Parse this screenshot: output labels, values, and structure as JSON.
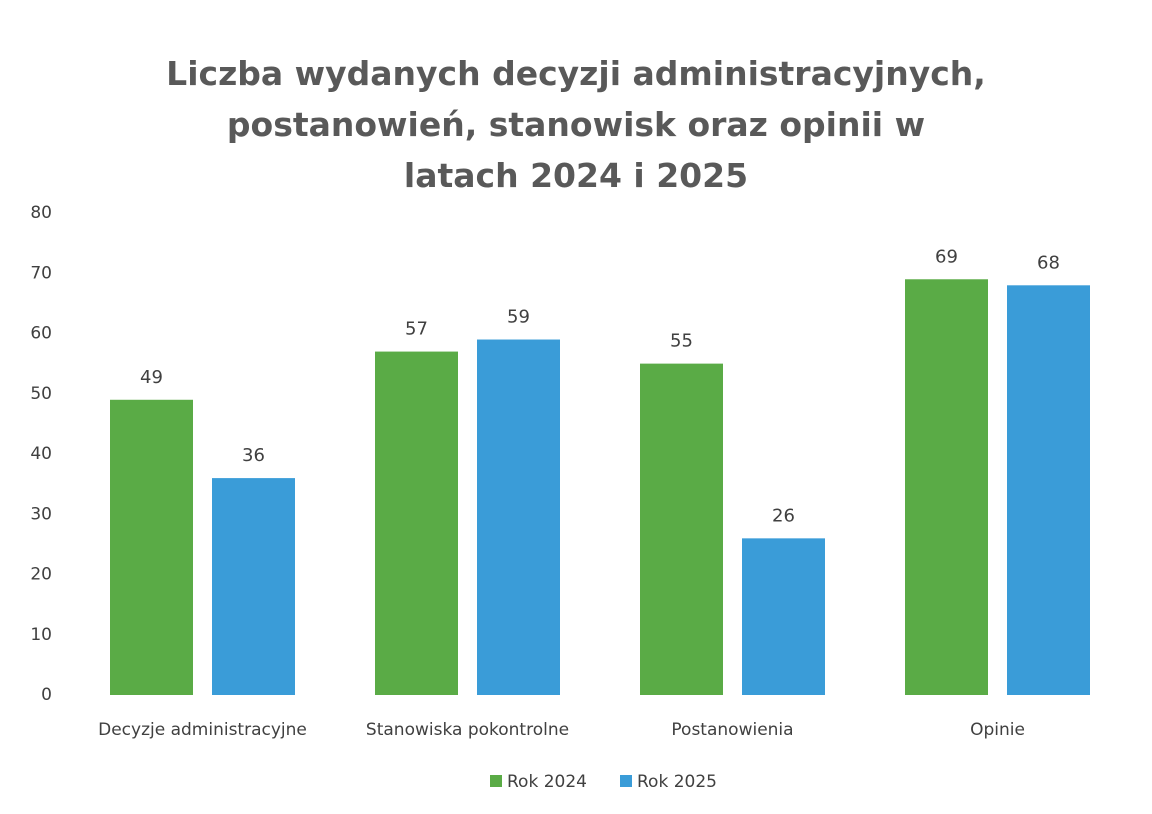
{
  "chart_data": {
    "type": "bar",
    "title": "Liczba wydanych decyzji administracyjnych, postanowień, stanowisk oraz opinii w latach 2024 i 2025",
    "categories": [
      "Decyzje administracyjne",
      "Stanowiska pokontrolne",
      "Postanowienia",
      "Opinie"
    ],
    "series": [
      {
        "name": "Rok 2024",
        "color": "#5aab46",
        "values": [
          49,
          57,
          55,
          69
        ]
      },
      {
        "name": "Rok 2025",
        "color": "#3a9cd8",
        "values": [
          36,
          59,
          26,
          68
        ]
      }
    ],
    "ylim": [
      0,
      80
    ],
    "yticks": [
      0,
      10,
      20,
      30,
      40,
      50,
      60,
      70,
      80
    ],
    "grid": false,
    "legend": "bottom"
  }
}
